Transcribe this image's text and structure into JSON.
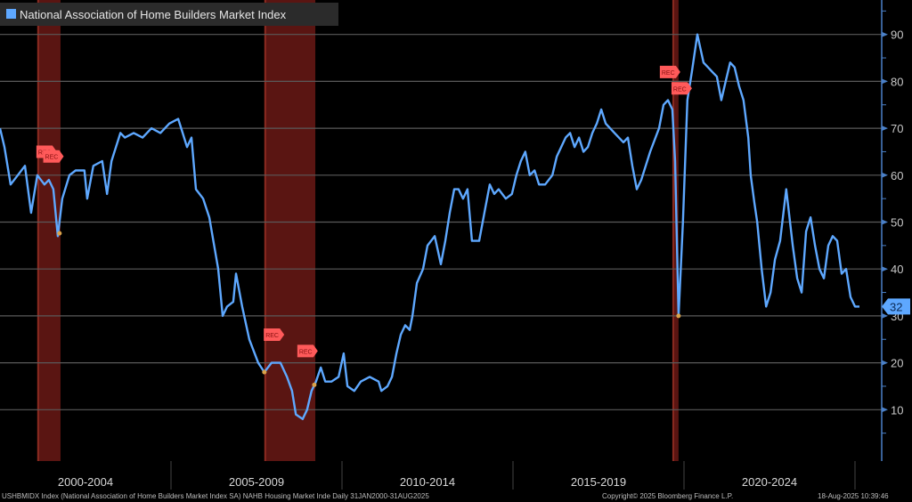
{
  "chart_data": {
    "type": "line",
    "title": "National Association of Home Builders Market Index",
    "xlim": [
      2000,
      2026.67
    ],
    "ylim": [
      0,
      97
    ],
    "y_ticks": [
      10,
      20,
      30,
      40,
      50,
      60,
      70,
      80,
      90
    ],
    "grid": true,
    "legend_position": "top-left",
    "x_period_labels": [
      {
        "label": "2000-2004",
        "start": 2000,
        "end": 2005
      },
      {
        "label": "2005-2009",
        "start": 2005,
        "end": 2010
      },
      {
        "label": "2010-2014",
        "start": 2010,
        "end": 2015
      },
      {
        "label": "2015-2019",
        "start": 2015,
        "end": 2020
      },
      {
        "label": "2020-2024",
        "start": 2020,
        "end": 2025
      }
    ],
    "last_value_label": "32",
    "last_value": 32,
    "recessions": [
      {
        "start": 2001.09,
        "end": 2001.77,
        "label": "REC"
      },
      {
        "start": 2007.73,
        "end": 2009.22,
        "label": "REC"
      },
      {
        "start": 2019.66,
        "end": 2019.84,
        "label": "REC"
      }
    ],
    "series": [
      {
        "name": "National Association of Home Builders Market Index",
        "color": "#5ea8ff",
        "x": [
          2000.0,
          2000.13,
          2000.31,
          2000.52,
          2000.73,
          2000.91,
          2001.09,
          2001.3,
          2001.43,
          2001.56,
          2001.69,
          2001.82,
          2002.03,
          2002.21,
          2002.47,
          2002.55,
          2002.73,
          2002.99,
          2003.13,
          2003.26,
          2003.52,
          2003.65,
          2003.91,
          2004.17,
          2004.43,
          2004.69,
          2004.95,
          2005.21,
          2005.34,
          2005.47,
          2005.6,
          2005.73,
          2005.94,
          2006.12,
          2006.38,
          2006.51,
          2006.64,
          2006.82,
          2006.9,
          2007.08,
          2007.29,
          2007.55,
          2007.73,
          2007.94,
          2008.2,
          2008.39,
          2008.54,
          2008.65,
          2008.85,
          2008.98,
          2009.11,
          2009.24,
          2009.38,
          2009.51,
          2009.69,
          2009.9,
          2010.05,
          2010.16,
          2010.36,
          2010.55,
          2010.81,
          2011.07,
          2011.15,
          2011.33,
          2011.46,
          2011.59,
          2011.72,
          2011.85,
          2011.98,
          2012.06,
          2012.19,
          2012.37,
          2012.5,
          2012.71,
          2012.89,
          2013.02,
          2013.15,
          2013.28,
          2013.41,
          2013.54,
          2013.67,
          2013.8,
          2014.01,
          2014.19,
          2014.32,
          2014.45,
          2014.58,
          2014.79,
          2014.97,
          2015.1,
          2015.23,
          2015.36,
          2015.49,
          2015.63,
          2015.76,
          2015.94,
          2016.15,
          2016.28,
          2016.41,
          2016.54,
          2016.67,
          2016.8,
          2016.93,
          2017.06,
          2017.19,
          2017.32,
          2017.45,
          2017.58,
          2017.71,
          2017.97,
          2018.23,
          2018.36,
          2018.49,
          2018.62,
          2018.75,
          2018.88,
          2019.01,
          2019.27,
          2019.4,
          2019.53,
          2019.66,
          2019.74,
          2019.84,
          2019.97,
          2020.1,
          2020.23,
          2020.39,
          2020.57,
          2020.7,
          2020.83,
          2020.96,
          2021.09,
          2021.22,
          2021.35,
          2021.48,
          2021.61,
          2021.74,
          2021.88,
          2021.95,
          2022.06,
          2022.14,
          2022.27,
          2022.4,
          2022.53,
          2022.66,
          2022.81,
          2022.99,
          2023.18,
          2023.31,
          2023.44,
          2023.57,
          2023.7,
          2023.83,
          2023.96,
          2024.09,
          2024.22,
          2024.35,
          2024.48,
          2024.61,
          2024.74,
          2024.87,
          2025.0,
          2025.13
        ],
        "y": [
          70,
          66,
          58,
          60,
          62,
          52,
          60,
          58,
          59,
          57,
          47,
          55,
          60,
          61,
          61,
          55,
          62,
          63,
          56,
          63,
          69,
          68,
          69,
          68,
          70,
          69,
          71,
          72,
          69,
          66,
          68,
          57,
          55,
          51,
          40,
          30,
          32,
          33,
          39,
          32,
          25,
          20,
          18,
          20,
          20,
          17,
          14,
          9,
          8,
          10,
          14,
          16,
          19,
          16,
          16,
          17,
          22,
          15,
          14,
          16,
          17,
          16,
          14,
          15,
          17,
          22,
          26,
          28,
          27,
          30,
          37,
          40,
          45,
          47,
          41,
          46,
          52,
          57,
          57,
          55,
          57,
          46,
          46,
          53,
          58,
          56,
          57,
          55,
          56,
          60,
          63,
          65,
          60,
          61,
          58,
          58,
          60,
          64,
          66,
          68,
          69,
          66,
          68,
          65,
          66,
          69,
          71,
          74,
          71,
          69,
          67,
          68,
          62,
          57,
          59,
          62,
          65,
          70,
          75,
          76,
          74,
          63,
          30,
          50,
          76,
          82,
          90,
          84,
          83,
          82,
          81,
          76,
          80,
          84,
          83,
          79,
          76,
          68,
          60,
          54,
          50,
          40,
          32,
          35,
          42,
          46,
          57,
          45,
          38,
          35,
          48,
          51,
          45,
          40,
          38,
          45,
          47,
          46,
          39,
          40,
          34,
          32,
          32
        ]
      }
    ],
    "markers": [
      {
        "x": 2001.74,
        "y": 47.6
      },
      {
        "x": 2007.73,
        "y": 18
      },
      {
        "x": 2009.19,
        "y": 15.3
      },
      {
        "x": 2019.84,
        "y": 30
      }
    ]
  },
  "footer": {
    "source": "USHBMIDX Index (National Association of Home Builders Market Index SA) NAHB Housing Market Inde  Daily 31JAN2000-31AUG2025",
    "copyright": "Copyright© 2025 Bloomberg Finance L.P.",
    "timestamp": "18-Aug-2025 10:39:46"
  }
}
